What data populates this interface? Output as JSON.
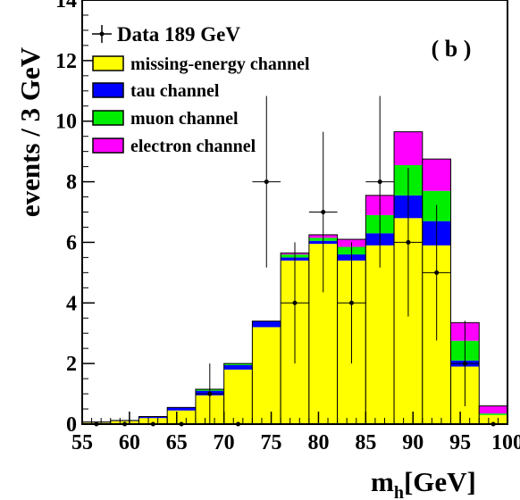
{
  "chart_data": {
    "type": "bar",
    "stacked": true,
    "panel_label": "( b )",
    "xlabel": "m",
    "xlabel_sub": "h",
    "xlabel_unit": "[GeV]",
    "ylabel": "events / 3 GeV",
    "xlim": [
      55,
      100
    ],
    "ylim": [
      0,
      14
    ],
    "xticks": [
      55,
      60,
      65,
      70,
      75,
      80,
      85,
      90,
      95,
      100
    ],
    "yticks": [
      0,
      2,
      4,
      6,
      8,
      10,
      12,
      14
    ],
    "bin_edges": [
      55,
      58,
      61,
      64,
      67,
      70,
      73,
      76,
      79,
      82,
      85,
      88,
      91,
      94,
      97,
      100
    ],
    "series": [
      {
        "name": "missing-energy channel",
        "color": "#ffff00",
        "values": [
          0.05,
          0.1,
          0.2,
          0.45,
          0.95,
          1.8,
          3.2,
          5.4,
          5.95,
          5.4,
          5.9,
          6.8,
          5.9,
          1.9,
          0.3
        ]
      },
      {
        "name": "tau channel",
        "color": "#0000ff",
        "values": [
          0.02,
          0.02,
          0.05,
          0.1,
          0.15,
          0.15,
          0.2,
          0.1,
          0.1,
          0.2,
          0.4,
          0.75,
          0.8,
          0.2,
          0.0
        ]
      },
      {
        "name": "muon channel",
        "color": "#00ee00",
        "values": [
          0.0,
          0.0,
          0.0,
          0.0,
          0.05,
          0.05,
          0.0,
          0.1,
          0.1,
          0.25,
          0.6,
          1.0,
          1.0,
          0.65,
          0.05
        ]
      },
      {
        "name": "electron channel",
        "color": "#ff00ff",
        "values": [
          0.0,
          0.0,
          0.0,
          0.0,
          0.0,
          0.0,
          0.0,
          0.05,
          0.1,
          0.25,
          0.65,
          1.1,
          1.05,
          0.6,
          0.25
        ]
      }
    ],
    "data_points": {
      "name": "Data 189 GeV",
      "x": [
        56.5,
        59.5,
        62.5,
        65.5,
        68.5,
        71.5,
        74.5,
        77.5,
        80.5,
        83.5,
        86.5,
        89.5,
        92.5,
        95.5,
        98.5
      ],
      "y": [
        0,
        0,
        0,
        0,
        1,
        0,
        8,
        4,
        7,
        4,
        8,
        6,
        5,
        2,
        0
      ],
      "yerr": [
        0,
        0,
        0,
        0,
        1,
        0,
        2.83,
        2,
        2.65,
        2,
        2.83,
        2.45,
        2.24,
        1.41,
        0
      ]
    },
    "legend_position": "top-left"
  }
}
